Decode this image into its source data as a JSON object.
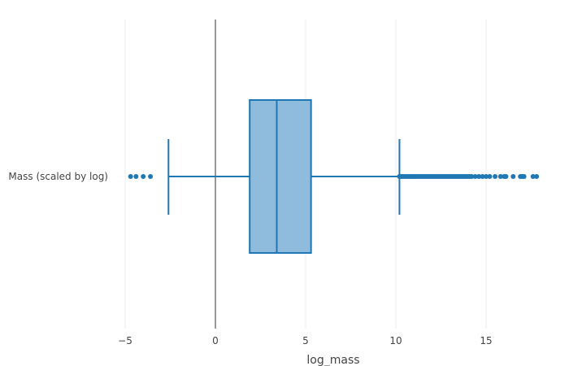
{
  "chart_data": {
    "type": "box",
    "orientation": "horizontal",
    "xlabel": "log_mass",
    "xlim": [
      -5.1,
      18.0
    ],
    "x_ticks": [
      -5,
      0,
      5,
      10,
      15
    ],
    "x_tick_labels": [
      "−5",
      "0",
      "5",
      "10",
      "15"
    ],
    "grid": true,
    "zero_line": true,
    "series": [
      {
        "category_label": "Mass (scaled by log)",
        "whisker_low": -2.6,
        "q1": 1.9,
        "median": 3.4,
        "q3": 5.3,
        "whisker_high": 10.2,
        "outliers": [
          -4.7,
          -4.4,
          -4.0,
          -3.6,
          10.2,
          10.3,
          10.4,
          10.5,
          10.6,
          10.7,
          10.8,
          10.9,
          11.0,
          11.1,
          11.2,
          11.3,
          11.4,
          11.5,
          11.6,
          11.7,
          11.8,
          11.9,
          12.0,
          12.1,
          12.2,
          12.3,
          12.4,
          12.5,
          12.6,
          12.7,
          12.8,
          12.9,
          13.0,
          13.1,
          13.2,
          13.3,
          13.4,
          13.5,
          13.6,
          13.7,
          13.8,
          13.9,
          14.0,
          14.1,
          14.2,
          14.4,
          14.6,
          14.8,
          15.0,
          15.2,
          15.5,
          15.8,
          16.0,
          16.1,
          16.5,
          16.9,
          17.0,
          17.1,
          17.6,
          17.8
        ]
      }
    ],
    "colors": {
      "box_fill": "#8fbbdc",
      "line": "#1f77b4",
      "grid": "#ececec",
      "zero_line": "#777777"
    }
  }
}
